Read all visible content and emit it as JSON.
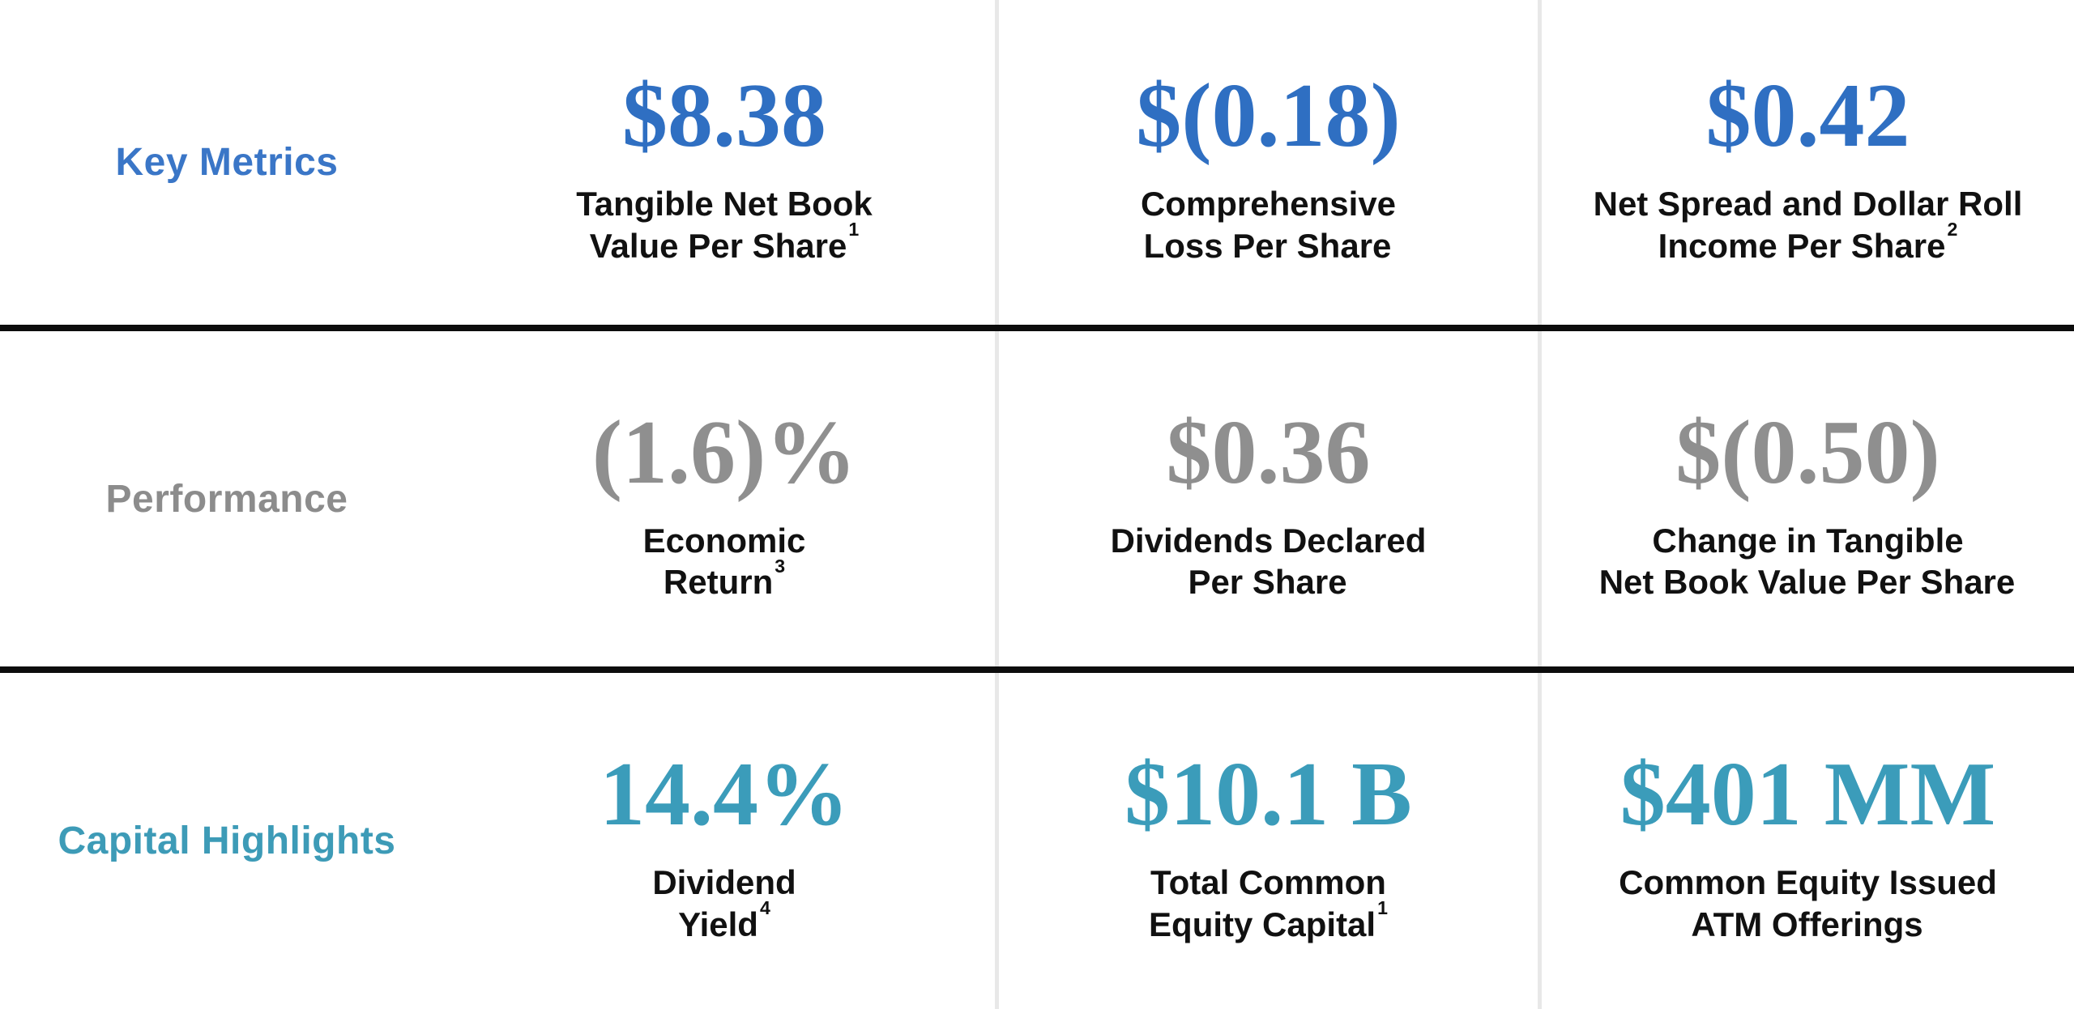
{
  "page": {
    "background": "#FFFFFF",
    "rule_color": "#0C0C0C",
    "divider_color": "#E8E8E8",
    "caption_color": "#111111"
  },
  "rows": [
    {
      "label": "Key Metrics",
      "label_color": "#3A76C7",
      "value_color": "#2F6FC2",
      "metrics": [
        {
          "value": "$8.38",
          "caption_line1": "Tangible Net Book",
          "caption_line2": "Value Per Share",
          "caption_sup": "1"
        },
        {
          "value": "$(0.18)",
          "caption_line1": "Comprehensive",
          "caption_line2": "Loss Per Share",
          "caption_sup": ""
        },
        {
          "value": "$0.42",
          "caption_line1": "Net Spread and Dollar Roll",
          "caption_line2": "Income Per Share",
          "caption_sup": "2"
        }
      ]
    },
    {
      "label": "Performance",
      "label_color": "#8C8C8C",
      "value_color": "#8F8F8F",
      "metrics": [
        {
          "value": "(1.6)%",
          "caption_line1": "Economic",
          "caption_line2": "Return",
          "caption_sup": "3"
        },
        {
          "value": "$0.36",
          "caption_line1": "Dividends Declared",
          "caption_line2": "Per Share",
          "caption_sup": ""
        },
        {
          "value": "$(0.50)",
          "caption_line1": "Change in Tangible",
          "caption_line2": "Net Book Value Per Share",
          "caption_sup": ""
        }
      ]
    },
    {
      "label": "Capital Highlights",
      "label_color": "#3D9BB7",
      "value_color": "#3B9CBA",
      "metrics": [
        {
          "value": "14.4%",
          "caption_line1": "Dividend",
          "caption_line2": "Yield",
          "caption_sup": "4"
        },
        {
          "value": "$10.1 B",
          "caption_line1": "Total Common",
          "caption_line2": "Equity Capital",
          "caption_sup": "1"
        },
        {
          "value": "$401 MM",
          "caption_line1": "Common Equity Issued",
          "caption_line2": "ATM Offerings",
          "caption_sup": ""
        }
      ]
    }
  ]
}
